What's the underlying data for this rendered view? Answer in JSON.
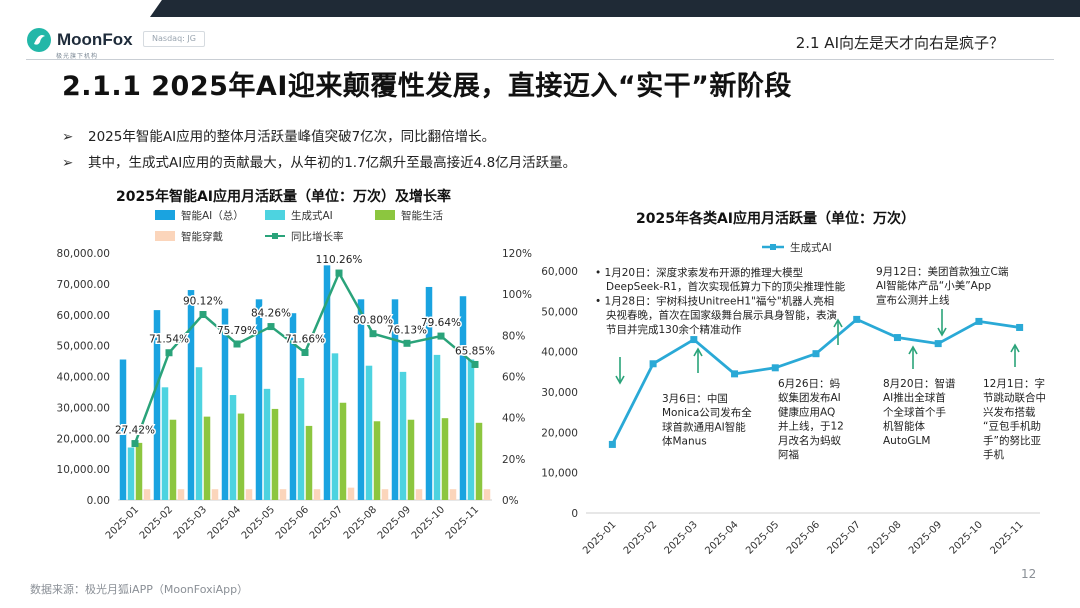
{
  "header": {
    "brand": "MoonFox",
    "brand_sub": "极光旗下机构",
    "ticker": "Nasdaq: JG",
    "section_title": "2.1 AI向左是天才向右是疯子？",
    "main_title": "2.1.1 2025年AI迎来颠覆性发展，直接迈入“实干”新阶段"
  },
  "bullets": [
    "2025年智能AI应用的整体月活跃量峰值突破7亿次，同比翻倍增长。",
    "其中，生成式AI应用的贡献最大，从年初的1.7亿飙升至最高接近4.8亿月活跃量。"
  ],
  "footer": {
    "source": "数据来源：极光月狐iAPP（MoonFoxiApp）",
    "page_number": "12"
  },
  "colors": {
    "ai_total": "#1aa3e0",
    "gen_ai": "#4dd3e0",
    "smart_life": "#8cc63f",
    "wearable": "#fbd5bb",
    "growth_line": "#2aa37a",
    "gen_line": "#2aa9d6",
    "arrow": "#2aa37a"
  },
  "chart_data": [
    {
      "type": "bar",
      "title": "2025年智能AI应用月活跃量（单位：万次）及增长率",
      "categories": [
        "2025-01",
        "2025-02",
        "2025-03",
        "2025-04",
        "2025-05",
        "2025-06",
        "2025-07",
        "2025-08",
        "2025-09",
        "2025-10",
        "2025-11"
      ],
      "ylim": [
        0,
        80000
      ],
      "y2lim": [
        0,
        120
      ],
      "yticks": [
        "0.00",
        "10,000.00",
        "20,000.00",
        "30,000.00",
        "40,000.00",
        "50,000.00",
        "60,000.00",
        "70,000.00",
        "80,000.00"
      ],
      "y2ticks": [
        "0%",
        "20%",
        "40%",
        "60%",
        "80%",
        "100%",
        "120%"
      ],
      "series": [
        {
          "name": "智能AI（总）",
          "values": [
            45500,
            61500,
            68000,
            62000,
            65000,
            60500,
            76000,
            65000,
            65000,
            69000,
            66000
          ]
        },
        {
          "name": "生成式AI",
          "values": [
            17000,
            36500,
            43000,
            34000,
            36000,
            39500,
            47500,
            43500,
            41500,
            47000,
            45500
          ]
        },
        {
          "name": "智能生活",
          "values": [
            18500,
            26000,
            27000,
            28000,
            29500,
            24000,
            31500,
            25500,
            26000,
            26500,
            25000
          ]
        },
        {
          "name": "智能穿戴",
          "values": [
            3500,
            3500,
            3500,
            3500,
            3500,
            3500,
            4000,
            3500,
            3500,
            3500,
            3500
          ]
        }
      ],
      "line_series": {
        "name": "同比增长率",
        "values": [
          27.42,
          71.54,
          90.12,
          75.79,
          84.26,
          71.66,
          110.26,
          80.8,
          76.13,
          79.64,
          65.85
        ],
        "labels": [
          "27.42%",
          "71.54%",
          "90.12%",
          "75.79%",
          "84.26%",
          "71.66%",
          "110.26%",
          "80.80%",
          "76.13%",
          "79.64%",
          "65.85%"
        ]
      }
    },
    {
      "type": "line",
      "title": "2025年各类AI应用月活跃量（单位：万次）",
      "categories": [
        "2025-01",
        "2025-02",
        "2025-03",
        "2025-04",
        "2025-05",
        "2025-06",
        "2025-07",
        "2025-08",
        "2025-09",
        "2025-10",
        "2025-11"
      ],
      "ylim": [
        0,
        60000
      ],
      "yticks": [
        "0",
        "10,000",
        "20,000",
        "30,000",
        "40,000",
        "50,000",
        "60,000"
      ],
      "series": [
        {
          "name": "生成式AI",
          "values": [
            17000,
            37000,
            43000,
            34500,
            36000,
            39500,
            48000,
            43500,
            42000,
            47500,
            46000
          ]
        }
      ],
      "annotations": [
        {
          "lines": [
            "•  1月20日：深度求索发布开源的推理大模型",
            "DeepSeek-R1，首次实现低算力下的顶尖推理性能",
            "•  1月28日：宇树科技UnitreeH1\"福兮\"机器人亮相",
            "央视春晚，首次在国家级舞台展示具身智能，表演",
            "节目并完成130余个精准动作"
          ]
        },
        {
          "lines": [
            "3月6日：中国",
            "Monica公司发布全",
            "球首款通用AI智能",
            "体Manus"
          ]
        },
        {
          "lines": [
            "6月26日：蚂",
            "蚁集团发布AI",
            "健康应用AQ",
            "并上线，于12",
            "月改名为蚂蚁",
            "阿福"
          ]
        },
        {
          "lines": [
            "9月12日：美团首款独立C端",
            "AI智能体产品“小美”App",
            "宣布公测并上线"
          ]
        },
        {
          "lines": [
            "8月20日：智谱",
            "AI推出全球首",
            "个全球首个手",
            "机智能体",
            "AutoGLM"
          ]
        },
        {
          "lines": [
            "12月1日：字",
            "节跳动联合中",
            "兴发布搭载",
            "“豆包手机助",
            "手”的努比亚",
            "手机"
          ]
        }
      ]
    }
  ]
}
